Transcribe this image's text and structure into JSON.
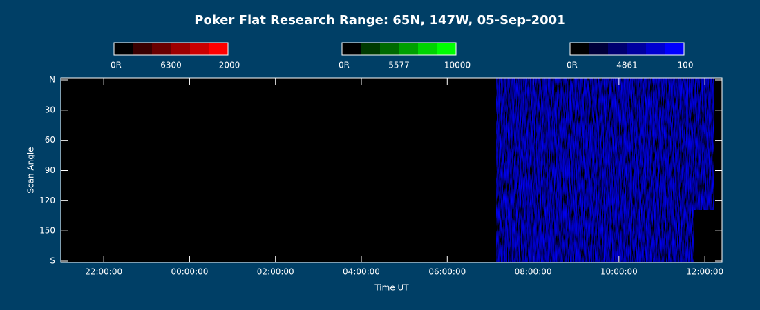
{
  "chart_data": {
    "type": "keogram",
    "title": "Poker Flat Research Range: 65N, 147W, 05-Sep-2001",
    "xlabel": "Time UT",
    "ylabel": "Scan Angle",
    "xlim": [
      21,
      36.4
    ],
    "xticks": [
      {
        "value": 22,
        "label": "22:00:00"
      },
      {
        "value": 24,
        "label": "00:00:00"
      },
      {
        "value": 26,
        "label": "02:00:00"
      },
      {
        "value": 28,
        "label": "04:00:00"
      },
      {
        "value": 30,
        "label": "06:00:00"
      },
      {
        "value": 32,
        "label": "08:00:00"
      },
      {
        "value": 34,
        "label": "10:00:00"
      },
      {
        "value": 36,
        "label": "12:00:00"
      }
    ],
    "ylim": [
      0,
      180
    ],
    "yticks": [
      {
        "value": 0,
        "label": "N"
      },
      30,
      60,
      90,
      120,
      150,
      {
        "value": 180,
        "label": "S"
      }
    ],
    "colorbars": [
      {
        "min": "0R",
        "name": "6300",
        "max": 2000,
        "colors": [
          "#000000",
          "#3a0000",
          "#6a0000",
          "#9d0000",
          "#cc0000",
          "#ff0000"
        ]
      },
      {
        "min": "0R",
        "name": "5577",
        "max": 10000,
        "colors": [
          "#000000",
          "#003a00",
          "#006a00",
          "#00a000",
          "#00d400",
          "#00ff00"
        ]
      },
      {
        "min": "0R",
        "name": "4861",
        "max": 100,
        "colors": [
          "#000000",
          "#00003a",
          "#000070",
          "#0000a0",
          "#0000d0",
          "#0000ff"
        ]
      }
    ]
  }
}
